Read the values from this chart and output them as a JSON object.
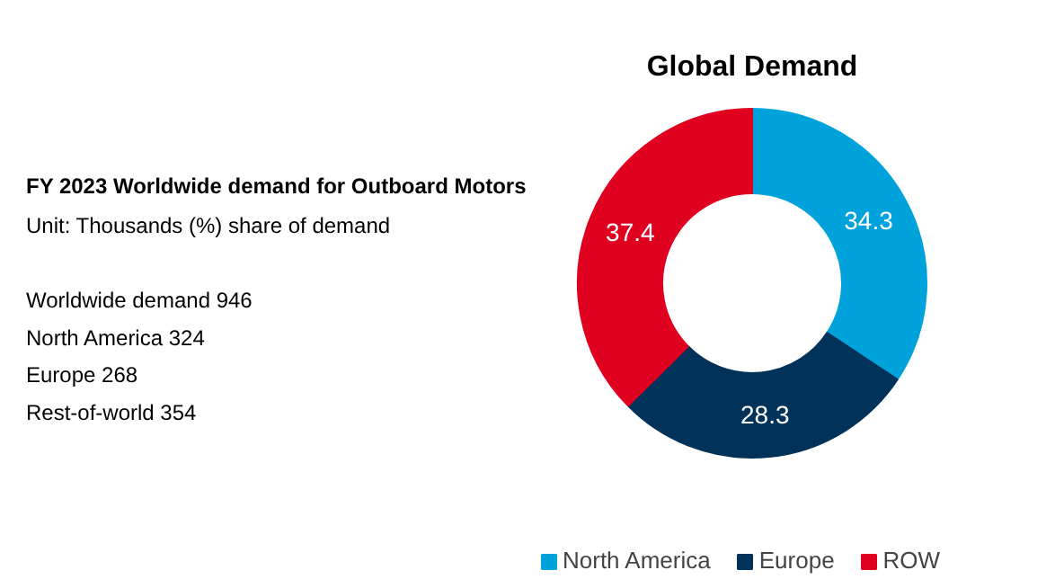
{
  "chart_data": {
    "type": "donut",
    "title": "Global Demand",
    "subtitle": "FY 2023 Worldwide demand for Outboard Motors",
    "annotations": [
      "Unit: Thousands (%) share of demand",
      "Worldwide demand 946",
      "North America 324",
      "Europe 268",
      "Rest-of-world 354"
    ],
    "categories": [
      "North America",
      "Europe",
      "ROW"
    ],
    "values": [
      34.3,
      28.3,
      37.4
    ],
    "colors": [
      "#00a2dc",
      "#00325a",
      "#e00020"
    ],
    "data_labels": true,
    "legend": "bottom"
  }
}
